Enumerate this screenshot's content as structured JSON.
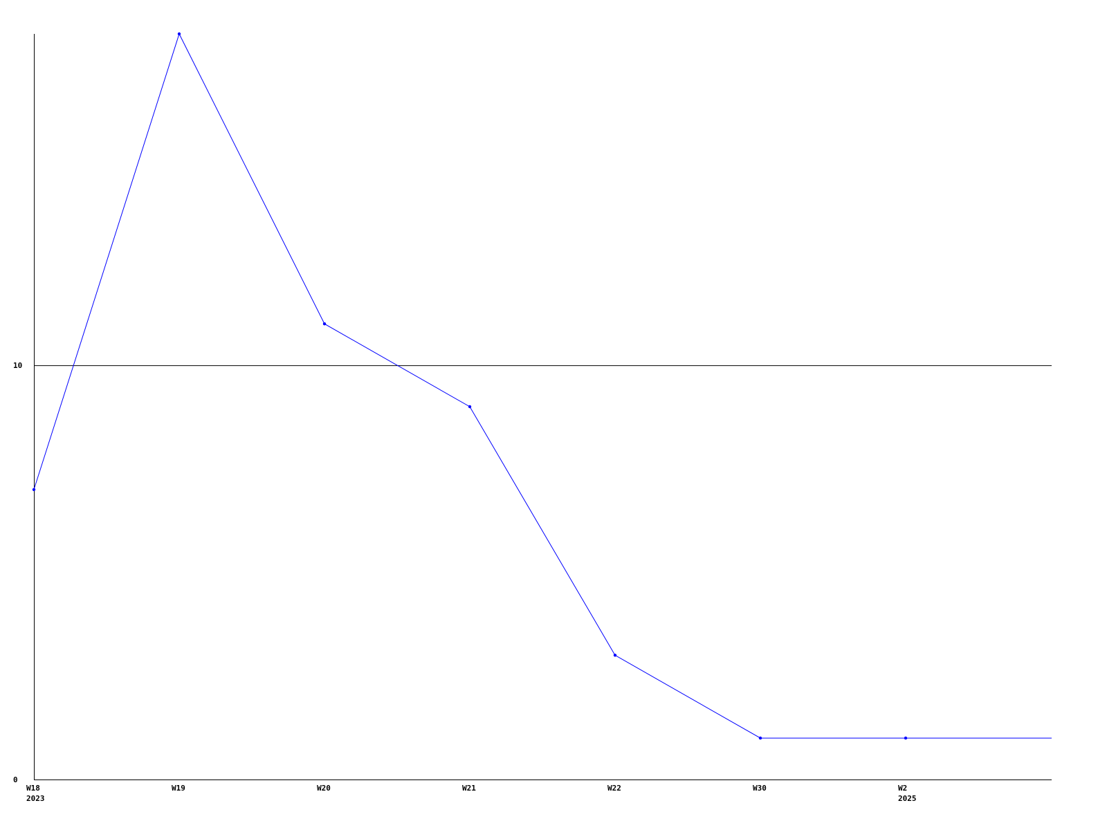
{
  "chart_data": {
    "type": "line",
    "title": "",
    "xlabel": "",
    "ylabel": "",
    "categories": [
      {
        "label": "W18",
        "sublabel": "2023"
      },
      {
        "label": "W19",
        "sublabel": ""
      },
      {
        "label": "W20",
        "sublabel": ""
      },
      {
        "label": "W21",
        "sublabel": ""
      },
      {
        "label": "W22",
        "sublabel": ""
      },
      {
        "label": "W30",
        "sublabel": ""
      },
      {
        "label": "W2",
        "sublabel": "2025"
      }
    ],
    "values": [
      7,
      18,
      11,
      9,
      3,
      1,
      1
    ],
    "ylim": [
      0,
      18
    ],
    "yticks": [
      {
        "value": 0,
        "label": "0"
      },
      {
        "value": 10,
        "label": "10"
      }
    ],
    "grid": "horizontal line at 10",
    "line_extends_to_right_edge": true,
    "series_color": "#0000ff",
    "axis_color": "#000000"
  }
}
